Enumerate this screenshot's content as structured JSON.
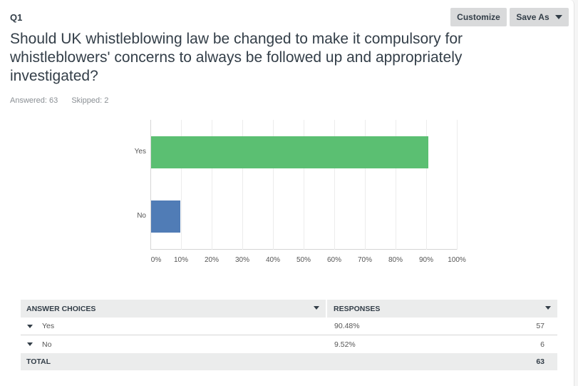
{
  "question": {
    "number": "Q1",
    "title": "Should UK whistleblowing law be changed to make it compulsory for whistleblowers' concerns to always be followed up and appropriately investigated?",
    "answered_label": "Answered: 63",
    "skipped_label": "Skipped: 2"
  },
  "toolbar": {
    "customize_label": "Customize",
    "save_as_label": "Save As"
  },
  "colors": {
    "yes_bar": "#5bbf72",
    "no_bar": "#507cb6"
  },
  "chart_data": {
    "type": "bar",
    "orientation": "horizontal",
    "title": "Should UK whistleblowing law be changed to make it compulsory for whistleblowers' concerns to always be followed up and appropriately investigated?",
    "categories": [
      "Yes",
      "No"
    ],
    "values": [
      90.48,
      9.52
    ],
    "xlabel": "",
    "ylabel": "",
    "xlim": [
      0,
      100
    ],
    "x_ticks": [
      "0%",
      "10%",
      "20%",
      "30%",
      "40%",
      "50%",
      "60%",
      "70%",
      "80%",
      "90%",
      "100%"
    ],
    "grid": true,
    "legend": false
  },
  "table": {
    "headers": {
      "choices": "ANSWER CHOICES",
      "responses": "RESPONSES"
    },
    "rows": [
      {
        "choice": "Yes",
        "percent": "90.48%",
        "count": "57"
      },
      {
        "choice": "No",
        "percent": "9.52%",
        "count": "6"
      }
    ],
    "total_label": "TOTAL",
    "total_value": "63"
  }
}
